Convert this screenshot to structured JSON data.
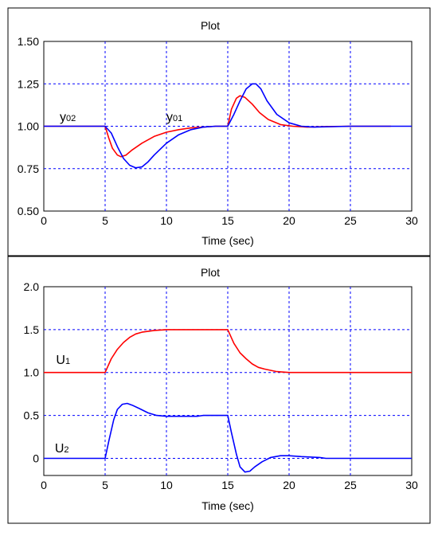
{
  "chart_data": [
    {
      "type": "line",
      "title": "Plot",
      "xlabel": "Time (sec)",
      "ylabel": "",
      "xlim": [
        0,
        30
      ],
      "ylim": [
        0.5,
        1.5
      ],
      "xticks": [
        0,
        5,
        10,
        15,
        20,
        25,
        30
      ],
      "yticks": [
        0.5,
        0.75,
        1.0,
        1.25,
        1.5
      ],
      "xtick_labels": [
        "0",
        "5",
        "10",
        "15",
        "20",
        "25",
        "30"
      ],
      "ytick_labels": [
        "0.50",
        "0.75",
        "1.00",
        "1.25",
        "1.50"
      ],
      "grid": true,
      "series": [
        {
          "color": "#ff0000",
          "x": [
            0,
            5,
            5.3,
            5.6,
            6.0,
            6.3,
            6.7,
            7.2,
            8,
            9,
            10,
            11,
            12,
            13,
            14,
            15,
            15.3,
            15.7,
            16,
            16.4,
            17,
            17.6,
            18.3,
            19.3,
            20.3,
            21.5,
            23,
            25,
            28.3
          ],
          "y": [
            1.0,
            1.0,
            0.93,
            0.87,
            0.83,
            0.82,
            0.83,
            0.86,
            0.9,
            0.94,
            0.965,
            0.98,
            0.99,
            0.995,
            1.0,
            1.0,
            1.1,
            1.165,
            1.18,
            1.17,
            1.13,
            1.08,
            1.04,
            1.01,
            1.0,
            0.995,
            0.998,
            1.0,
            1.0
          ]
        },
        {
          "color": "#0000ff",
          "x": [
            0,
            5,
            5.5,
            6.0,
            6.5,
            7.0,
            7.5,
            8.0,
            8.5,
            9.0,
            10,
            11,
            12,
            13,
            14,
            15,
            15.5,
            16,
            16.5,
            17,
            17.3,
            17.7,
            18.2,
            19,
            20,
            21,
            22,
            25,
            30
          ],
          "y": [
            1.0,
            1.0,
            0.96,
            0.88,
            0.81,
            0.77,
            0.755,
            0.76,
            0.79,
            0.83,
            0.9,
            0.95,
            0.98,
            0.995,
            1.0,
            1.0,
            1.07,
            1.15,
            1.22,
            1.25,
            1.25,
            1.22,
            1.15,
            1.07,
            1.02,
            1.0,
            0.995,
            1.0,
            1.0
          ]
        }
      ],
      "annotations": [
        {
          "text": "y",
          "sub": "02",
          "x": 1.3,
          "y": 1.03
        },
        {
          "text": "y",
          "sub": "01",
          "x": 10.0,
          "y": 1.03
        }
      ]
    },
    {
      "type": "line",
      "title": "Plot",
      "xlabel": "Time (sec)",
      "ylabel": "",
      "xlim": [
        0,
        30
      ],
      "ylim": [
        -0.2,
        2.0
      ],
      "xticks": [
        0,
        5,
        10,
        15,
        20,
        25,
        30
      ],
      "yticks": [
        0,
        0.5,
        1.0,
        1.5,
        2.0
      ],
      "xtick_labels": [
        "0",
        "5",
        "10",
        "15",
        "20",
        "25",
        "30"
      ],
      "ytick_labels": [
        "0",
        "0.5",
        "1.0",
        "1.5",
        "2.0"
      ],
      "grid": true,
      "series": [
        {
          "color": "#ff0000",
          "x": [
            0,
            5,
            5.5,
            6,
            6.5,
            7,
            7.5,
            8,
            9,
            10,
            12,
            15,
            15.5,
            16,
            16.5,
            17,
            17.5,
            18,
            19,
            20,
            22,
            30
          ],
          "y": [
            1.0,
            1.0,
            1.16,
            1.27,
            1.35,
            1.41,
            1.45,
            1.47,
            1.49,
            1.5,
            1.5,
            1.5,
            1.34,
            1.23,
            1.16,
            1.1,
            1.06,
            1.04,
            1.01,
            1.0,
            1.0,
            1.0
          ]
        },
        {
          "color": "#0000ff",
          "x": [
            0,
            5,
            5.3,
            5.7,
            6.0,
            6.4,
            6.8,
            7.2,
            7.8,
            8.5,
            9.2,
            10,
            11,
            12.5,
            13,
            15,
            15.3,
            15.7,
            16,
            16.4,
            16.8,
            17.2,
            17.8,
            18.5,
            19.3,
            20,
            21,
            22.5,
            23,
            30
          ],
          "y": [
            0,
            0,
            0.2,
            0.45,
            0.57,
            0.63,
            0.64,
            0.62,
            0.58,
            0.53,
            0.5,
            0.49,
            0.49,
            0.49,
            0.5,
            0.5,
            0.3,
            0.05,
            -0.1,
            -0.16,
            -0.15,
            -0.1,
            -0.04,
            0.01,
            0.03,
            0.03,
            0.02,
            0.01,
            0,
            0
          ]
        }
      ],
      "annotations": [
        {
          "text": "U",
          "sub": "1",
          "x": 1.0,
          "y": 1.1
        },
        {
          "text": "U",
          "sub": "2",
          "x": 0.9,
          "y": 0.07
        }
      ]
    }
  ]
}
